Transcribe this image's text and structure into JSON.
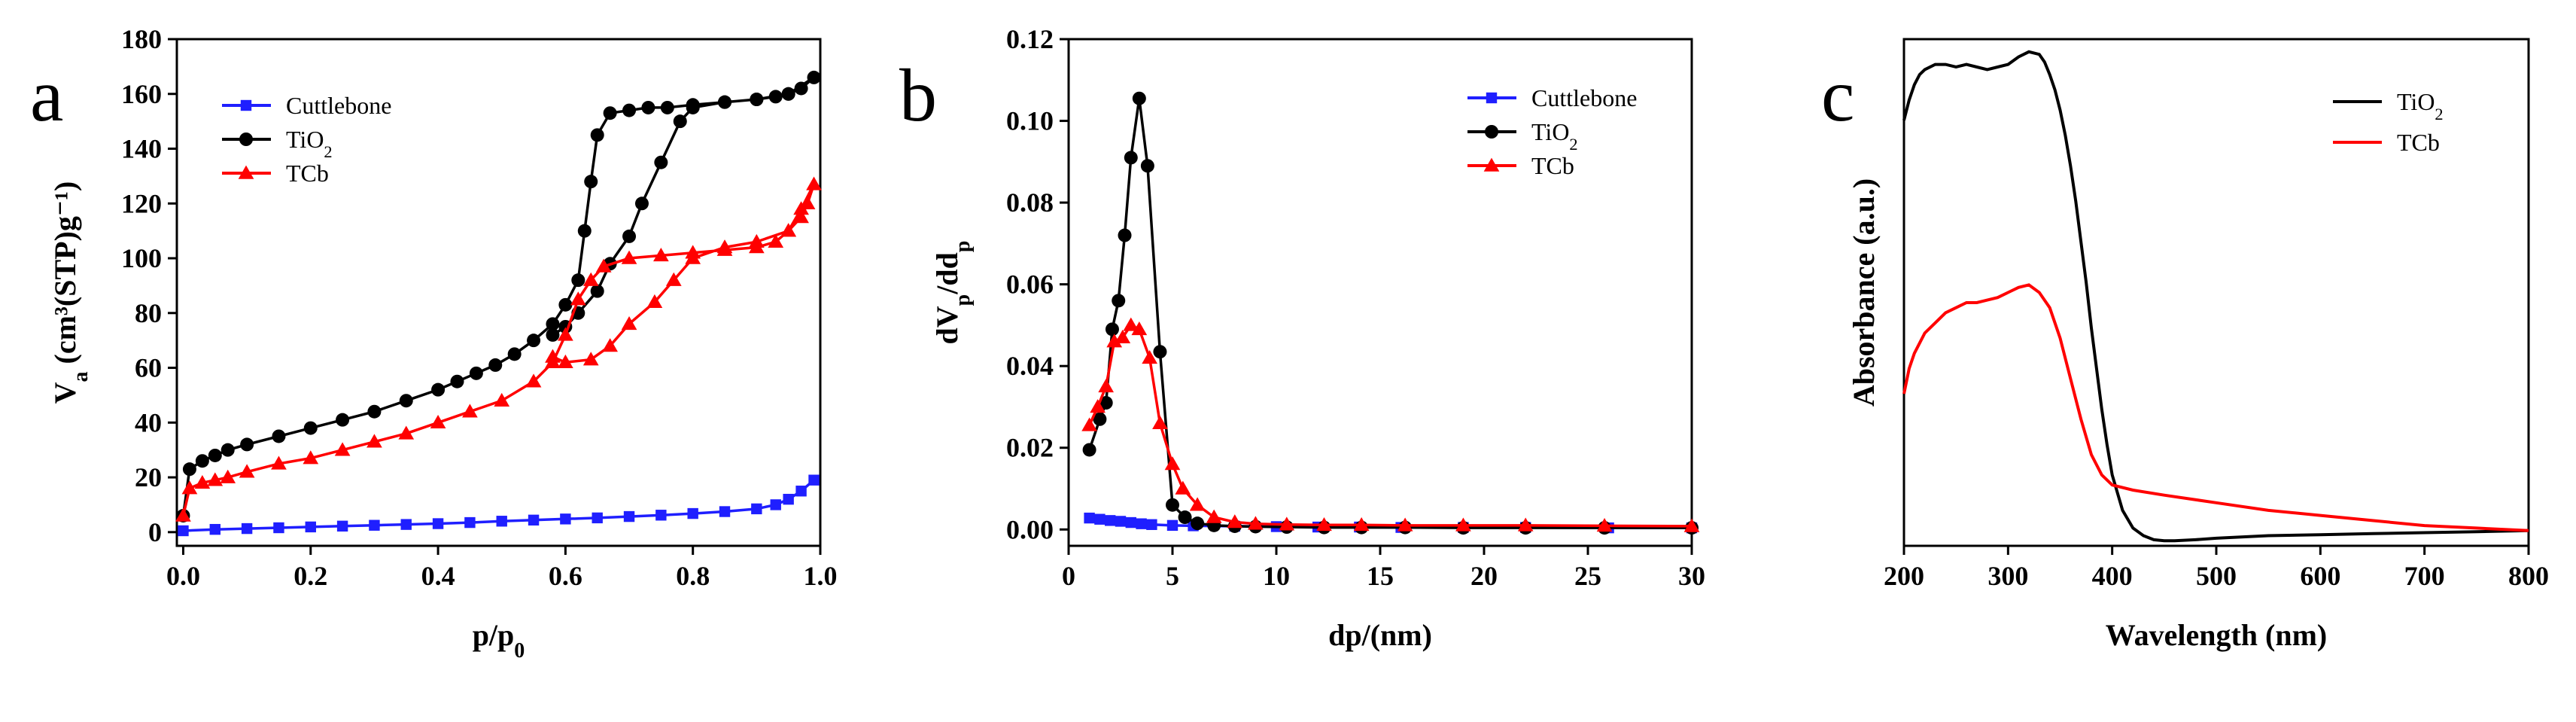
{
  "chart_data": [
    {
      "type": "line",
      "panel": "a",
      "title": "",
      "xlabel": "p/p0",
      "ylabel": "Va (cm³(STP)g⁻¹)",
      "xlim": [
        -0.01,
        1.0
      ],
      "ylim": [
        -5,
        180
      ],
      "xticks": [
        "0.0",
        "0.2",
        "0.4",
        "0.6",
        "0.8",
        "1.0"
      ],
      "yticks": [
        "0",
        "20",
        "40",
        "60",
        "80",
        "100",
        "120",
        "140",
        "160",
        "180"
      ],
      "xtick_values": [
        0,
        0.2,
        0.4,
        0.6,
        0.8,
        1.0
      ],
      "ytick_values": [
        0,
        20,
        40,
        60,
        80,
        100,
        120,
        140,
        160,
        180
      ],
      "legend": [
        "Cuttlebone",
        "TiO2",
        "TCb"
      ],
      "series": [
        {
          "name": "Cuttlebone",
          "color": "#1f1fff",
          "marker": "square",
          "x": [
            0.0,
            0.05,
            0.1,
            0.15,
            0.2,
            0.25,
            0.3,
            0.35,
            0.4,
            0.45,
            0.5,
            0.55,
            0.6,
            0.65,
            0.7,
            0.75,
            0.8,
            0.85,
            0.9,
            0.93,
            0.95,
            0.97,
            0.99
          ],
          "y": [
            0.5,
            1,
            1.3,
            1.6,
            1.9,
            2.2,
            2.5,
            2.8,
            3.1,
            3.5,
            4,
            4.4,
            4.8,
            5.2,
            5.7,
            6.2,
            6.8,
            7.5,
            8.5,
            10,
            12,
            15,
            19
          ]
        },
        {
          "name": "TiO2",
          "color": "#000000",
          "marker": "circle",
          "x": [
            0.0,
            0.01,
            0.03,
            0.05,
            0.07,
            0.1,
            0.15,
            0.2,
            0.25,
            0.3,
            0.35,
            0.4,
            0.43,
            0.46,
            0.49,
            0.52,
            0.55,
            0.58,
            0.6,
            0.62,
            0.63,
            0.64,
            0.65,
            0.67,
            0.7,
            0.73,
            0.76,
            0.8,
            0.85,
            0.9,
            0.93,
            0.95,
            0.97,
            0.99,
            0.95,
            0.9,
            0.85,
            0.8,
            0.78,
            0.75,
            0.72,
            0.7,
            0.67,
            0.65,
            0.62,
            0.6,
            0.58
          ],
          "y": [
            6,
            23,
            26,
            28,
            30,
            32,
            35,
            38,
            41,
            44,
            48,
            52,
            55,
            58,
            61,
            65,
            70,
            76,
            83,
            92,
            110,
            128,
            145,
            153,
            154,
            155,
            155,
            156,
            157,
            158,
            159,
            160,
            162,
            166,
            160,
            158,
            157,
            155,
            150,
            135,
            120,
            108,
            98,
            88,
            80,
            75,
            72
          ]
        },
        {
          "name": "TCb",
          "color": "#ff0000",
          "marker": "triangle",
          "x": [
            0.0,
            0.01,
            0.03,
            0.05,
            0.07,
            0.1,
            0.15,
            0.2,
            0.25,
            0.3,
            0.35,
            0.4,
            0.45,
            0.5,
            0.55,
            0.58,
            0.6,
            0.62,
            0.64,
            0.66,
            0.7,
            0.75,
            0.8,
            0.85,
            0.9,
            0.93,
            0.95,
            0.97,
            0.98,
            0.99,
            0.97,
            0.95,
            0.9,
            0.85,
            0.8,
            0.77,
            0.74,
            0.7,
            0.67,
            0.64,
            0.6,
            0.58
          ],
          "y": [
            6,
            16,
            18,
            19,
            20,
            22,
            25,
            27,
            30,
            33,
            36,
            40,
            44,
            48,
            55,
            62,
            72,
            85,
            92,
            97,
            100,
            101,
            102,
            103,
            104,
            106,
            110,
            115,
            120,
            127,
            118,
            110,
            106,
            104,
            100,
            92,
            84,
            76,
            68,
            63,
            62,
            64
          ]
        }
      ]
    },
    {
      "type": "line",
      "panel": "b",
      "title": "",
      "xlabel": "dp/(nm)",
      "ylabel": "dVp/ddp",
      "ylabel_display": "dVp/ddp",
      "xlim": [
        0,
        30
      ],
      "ylim": [
        -0.004,
        0.12
      ],
      "xticks": [
        "0",
        "5",
        "10",
        "15",
        "20",
        "25",
        "30"
      ],
      "yticks": [
        "0.00",
        "0.02",
        "0.04",
        "0.06",
        "0.08",
        "0.10",
        "0.12"
      ],
      "xtick_values": [
        0,
        5,
        10,
        15,
        20,
        25,
        30
      ],
      "ytick_values": [
        0,
        0.02,
        0.04,
        0.06,
        0.08,
        0.1,
        0.12
      ],
      "legend": [
        "Cuttlebone",
        "TiO2",
        "TCb"
      ],
      "series": [
        {
          "name": "Cuttlebone",
          "color": "#1f1fff",
          "marker": "square",
          "x": [
            1.0,
            1.5,
            2.0,
            2.5,
            3.0,
            3.5,
            4.0,
            5.0,
            6.0,
            8.0,
            10.0,
            12.0,
            14.0,
            16.0,
            19.0,
            22.0,
            26.0,
            30.0
          ],
          "y": [
            0.0028,
            0.0025,
            0.0022,
            0.002,
            0.0017,
            0.0014,
            0.0012,
            0.001,
            0.0009,
            0.0008,
            0.0007,
            0.0006,
            0.0006,
            0.0005,
            0.0005,
            0.0005,
            0.0004,
            0.0004
          ]
        },
        {
          "name": "TiO2",
          "color": "#000000",
          "marker": "circle",
          "x": [
            1.0,
            1.5,
            1.8,
            2.1,
            2.4,
            2.7,
            3.0,
            3.4,
            3.8,
            4.4,
            5.0,
            5.6,
            6.2,
            7.0,
            8.0,
            9.0,
            10.5,
            12.3,
            14.1,
            16.2,
            19.0,
            22.0,
            25.8,
            30.0
          ],
          "y": [
            0.0195,
            0.027,
            0.031,
            0.049,
            0.056,
            0.072,
            0.091,
            0.1055,
            0.089,
            0.0435,
            0.006,
            0.003,
            0.0015,
            0.001,
            0.0008,
            0.0007,
            0.0006,
            0.0005,
            0.0005,
            0.0005,
            0.0004,
            0.0004,
            0.0004,
            0.0004
          ]
        },
        {
          "name": "TCb",
          "color": "#ff0000",
          "marker": "triangle",
          "x": [
            1.0,
            1.4,
            1.8,
            2.2,
            2.6,
            3.0,
            3.4,
            3.9,
            4.4,
            5.0,
            5.5,
            6.2,
            7.0,
            8.0,
            9.0,
            10.5,
            12.3,
            14.1,
            16.2,
            19.0,
            22.0,
            25.8,
            30.0
          ],
          "y": [
            0.0255,
            0.03,
            0.035,
            0.046,
            0.047,
            0.05,
            0.049,
            0.042,
            0.026,
            0.016,
            0.01,
            0.006,
            0.003,
            0.0018,
            0.0014,
            0.0012,
            0.0011,
            0.0011,
            0.001,
            0.001,
            0.001,
            0.0009,
            0.0008
          ]
        }
      ]
    },
    {
      "type": "line",
      "panel": "c",
      "title": "",
      "xlabel": "Wavelength (nm)",
      "ylabel": "Absorbance (a.u.)",
      "xlim": [
        200,
        800
      ],
      "ylim": [
        0,
        1
      ],
      "xticks": [
        "200",
        "300",
        "400",
        "500",
        "600",
        "700",
        "800"
      ],
      "yticks": [],
      "xtick_values": [
        200,
        300,
        400,
        500,
        600,
        700,
        800
      ],
      "legend": [
        "TiO2",
        "TCb"
      ],
      "series": [
        {
          "name": "TiO2",
          "color": "#000000",
          "marker": "none",
          "x": [
            200,
            205,
            210,
            215,
            220,
            230,
            240,
            250,
            260,
            270,
            280,
            290,
            300,
            310,
            320,
            330,
            335,
            340,
            345,
            350,
            355,
            360,
            365,
            370,
            375,
            380,
            385,
            390,
            395,
            400,
            410,
            420,
            430,
            440,
            450,
            460,
            480,
            500,
            550,
            600,
            650,
            700,
            750,
            800
          ],
          "y": [
            0.84,
            0.88,
            0.91,
            0.93,
            0.94,
            0.95,
            0.95,
            0.945,
            0.95,
            0.945,
            0.94,
            0.945,
            0.95,
            0.965,
            0.975,
            0.97,
            0.955,
            0.93,
            0.9,
            0.86,
            0.81,
            0.75,
            0.68,
            0.6,
            0.52,
            0.43,
            0.35,
            0.27,
            0.2,
            0.14,
            0.07,
            0.035,
            0.02,
            0.012,
            0.01,
            0.01,
            0.012,
            0.015,
            0.02,
            0.022,
            0.024,
            0.026,
            0.028,
            0.03
          ]
        },
        {
          "name": "TCb",
          "color": "#ff0000",
          "marker": "none",
          "x": [
            200,
            205,
            210,
            220,
            230,
            240,
            250,
            260,
            270,
            280,
            290,
            300,
            310,
            320,
            330,
            340,
            350,
            360,
            370,
            380,
            390,
            400,
            420,
            450,
            500,
            550,
            600,
            650,
            700,
            750,
            800
          ],
          "y": [
            0.3,
            0.35,
            0.38,
            0.42,
            0.44,
            0.46,
            0.47,
            0.48,
            0.48,
            0.485,
            0.49,
            0.5,
            0.51,
            0.515,
            0.5,
            0.47,
            0.41,
            0.33,
            0.25,
            0.18,
            0.14,
            0.12,
            0.11,
            0.1,
            0.085,
            0.07,
            0.06,
            0.05,
            0.04,
            0.035,
            0.03
          ]
        }
      ]
    }
  ],
  "labels": {
    "panel_a": "a",
    "panel_b": "b",
    "panel_c": "c"
  }
}
